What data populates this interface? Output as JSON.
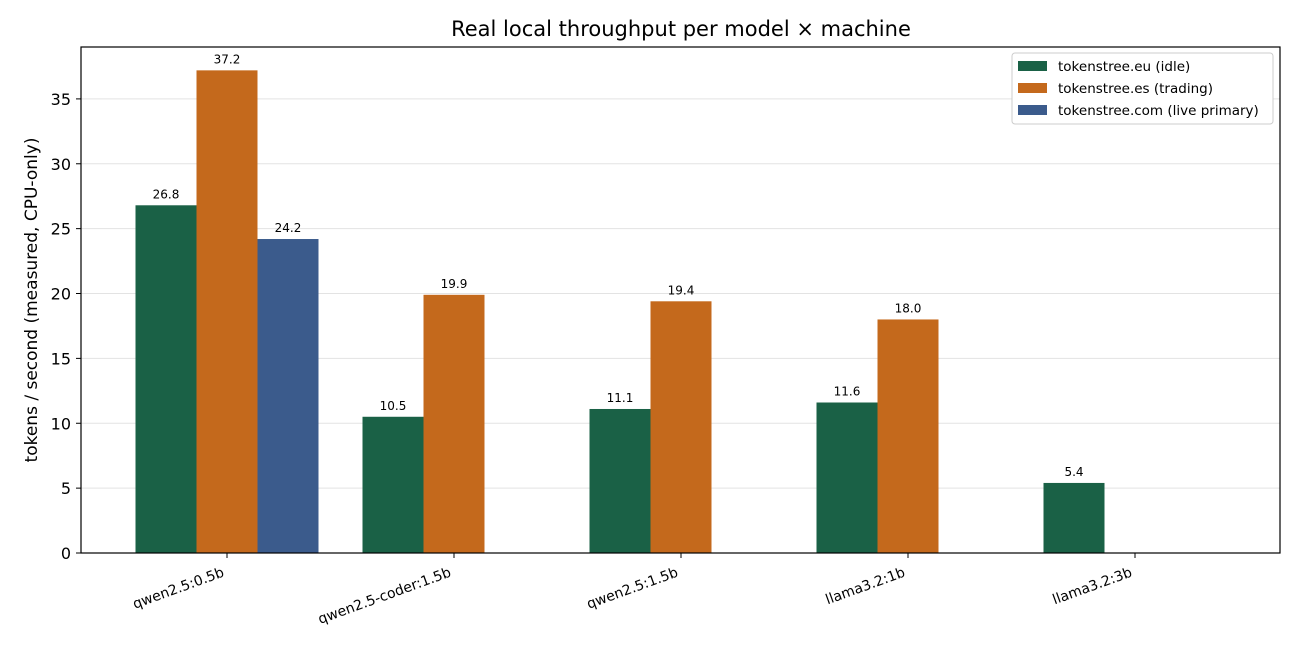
{
  "chart_data": {
    "type": "bar",
    "title": "Real local throughput per model × machine",
    "xlabel": "",
    "ylabel": "tokens / second (measured, CPU-only)",
    "ylim": [
      0,
      39
    ],
    "yticks": [
      0,
      5,
      10,
      15,
      20,
      25,
      30,
      35
    ],
    "grid": "y",
    "legend_position": "top-right",
    "categories": [
      "qwen2.5:0.5b",
      "qwen2.5-coder:1.5b",
      "qwen2.5:1.5b",
      "llama3.2:1b",
      "llama3.2:3b"
    ],
    "series": [
      {
        "name": "tokenstree.eu (idle)",
        "color": "#1a6146",
        "values": [
          26.8,
          10.5,
          11.1,
          11.6,
          5.4
        ]
      },
      {
        "name": "tokenstree.es (trading)",
        "color": "#c4691c",
        "values": [
          37.2,
          19.9,
          19.4,
          18.0,
          null
        ]
      },
      {
        "name": "tokenstree.com (live primary)",
        "color": "#3b5b8c",
        "values": [
          24.2,
          null,
          null,
          null,
          null
        ]
      }
    ],
    "data_labels": [
      [
        "26.8",
        "10.5",
        "11.1",
        "11.6",
        "5.4"
      ],
      [
        "37.2",
        "19.9",
        "19.4",
        "18.0",
        ""
      ],
      [
        "24.2",
        "",
        "",
        "",
        ""
      ]
    ]
  }
}
